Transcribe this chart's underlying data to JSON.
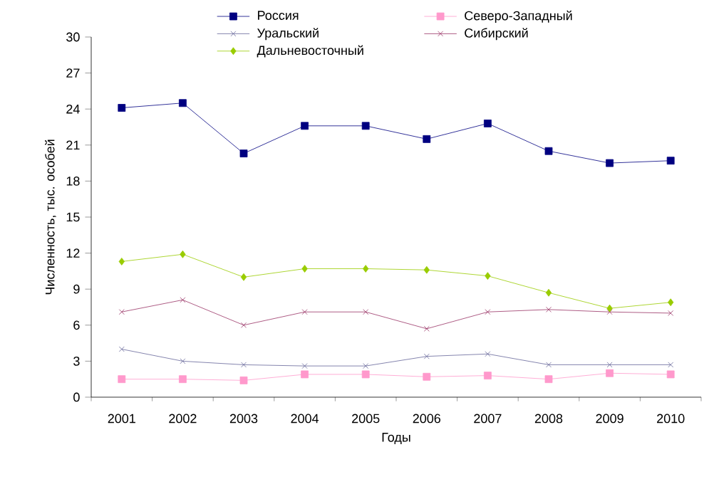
{
  "chart_data": {
    "type": "line",
    "xlabel": "Годы",
    "ylabel": "Численность, тыс. особей",
    "categories": [
      "2001",
      "2002",
      "2003",
      "2004",
      "2005",
      "2006",
      "2007",
      "2008",
      "2009",
      "2010"
    ],
    "ylim": [
      0,
      30
    ],
    "yticks": [
      0,
      3,
      6,
      9,
      12,
      15,
      18,
      21,
      24,
      27,
      30
    ],
    "grid": false,
    "legend": "top",
    "series": [
      {
        "name": "Россия",
        "color": "#000080",
        "marker": "square",
        "values": [
          24.1,
          24.5,
          20.3,
          22.6,
          22.6,
          21.5,
          22.8,
          20.5,
          19.5,
          19.7
        ]
      },
      {
        "name": "Северо-Западный",
        "color": "#ff99cc",
        "marker": "square",
        "values": [
          1.5,
          1.5,
          1.4,
          1.9,
          1.9,
          1.7,
          1.8,
          1.5,
          2.0,
          1.9
        ]
      },
      {
        "name": "Уральский",
        "color": "#666699",
        "marker": "cross",
        "values": [
          4.0,
          3.0,
          2.7,
          2.6,
          2.6,
          3.4,
          3.6,
          2.7,
          2.7,
          2.7
        ]
      },
      {
        "name": "Сибирский",
        "color": "#993366",
        "marker": "cross",
        "values": [
          7.1,
          8.1,
          6.0,
          7.1,
          7.1,
          5.7,
          7.1,
          7.3,
          7.1,
          7.0
        ]
      },
      {
        "name": "Дальневосточный",
        "color": "#99cc00",
        "marker": "diamond",
        "values": [
          11.3,
          11.9,
          10.0,
          10.7,
          10.7,
          10.6,
          10.1,
          8.7,
          7.4,
          7.9
        ]
      }
    ]
  }
}
